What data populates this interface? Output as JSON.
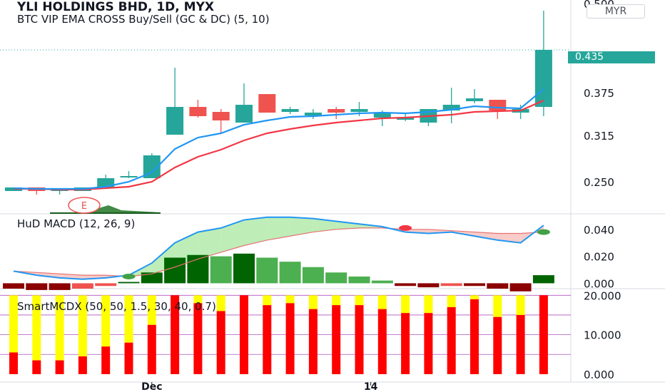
{
  "header": {
    "title": "YLI HOLDINGS BHD, 1D, MYX",
    "indicator": "BTC VIP EMA CROSS Buy/Sell (GC & DC) (5, 10)",
    "currency": "MYR",
    "last_price": "0.435"
  },
  "colors": {
    "up": "#26a69a",
    "down": "#ef5350",
    "ema_fast": "#2196f3",
    "ema_slow": "#f23645",
    "macd_fill": "#b7ebb0",
    "signal_fill": "#f7c6c2",
    "smart_red": "#ff0000",
    "smart_yellow": "#ffff00",
    "hline": "#9c27b0"
  },
  "chart_data": [
    {
      "type": "candlestick",
      "title": "YLI HOLDINGS BHD, 1D, MYX",
      "x_tick_labels": [
        "Dec",
        "14"
      ],
      "ylim": [
        0.205,
        0.505
      ],
      "y_tick_labels": [
        "0.500",
        "0.375",
        "0.315",
        "0.250"
      ],
      "y_ticks": [
        0.5,
        0.375,
        0.315,
        0.25
      ],
      "candles": [
        {
          "o": 0.237,
          "h": 0.242,
          "l": 0.237,
          "c": 0.242
        },
        {
          "o": 0.242,
          "h": 0.242,
          "l": 0.232,
          "c": 0.237
        },
        {
          "o": 0.237,
          "h": 0.24,
          "l": 0.232,
          "c": 0.239
        },
        {
          "o": 0.237,
          "h": 0.242,
          "l": 0.237,
          "c": 0.242
        },
        {
          "o": 0.242,
          "h": 0.26,
          "l": 0.24,
          "c": 0.255
        },
        {
          "o": 0.257,
          "h": 0.265,
          "l": 0.255,
          "c": 0.257
        },
        {
          "o": 0.255,
          "h": 0.29,
          "l": 0.255,
          "c": 0.287
        },
        {
          "o": 0.316,
          "h": 0.41,
          "l": 0.316,
          "c": 0.355
        },
        {
          "o": 0.355,
          "h": 0.365,
          "l": 0.34,
          "c": 0.342
        },
        {
          "o": 0.348,
          "h": 0.352,
          "l": 0.318,
          "c": 0.336
        },
        {
          "o": 0.333,
          "h": 0.388,
          "l": 0.333,
          "c": 0.358
        },
        {
          "o": 0.373,
          "h": 0.373,
          "l": 0.347,
          "c": 0.347
        },
        {
          "o": 0.348,
          "h": 0.355,
          "l": 0.345,
          "c": 0.352
        },
        {
          "o": 0.343,
          "h": 0.352,
          "l": 0.338,
          "c": 0.347
        },
        {
          "o": 0.352,
          "h": 0.355,
          "l": 0.338,
          "c": 0.347
        },
        {
          "o": 0.348,
          "h": 0.362,
          "l": 0.342,
          "c": 0.352
        },
        {
          "o": 0.34,
          "h": 0.35,
          "l": 0.328,
          "c": 0.347
        },
        {
          "o": 0.337,
          "h": 0.345,
          "l": 0.335,
          "c": 0.34
        },
        {
          "o": 0.333,
          "h": 0.352,
          "l": 0.328,
          "c": 0.352
        },
        {
          "o": 0.35,
          "h": 0.382,
          "l": 0.332,
          "c": 0.358
        },
        {
          "o": 0.363,
          "h": 0.38,
          "l": 0.36,
          "c": 0.367
        },
        {
          "o": 0.365,
          "h": 0.365,
          "l": 0.338,
          "c": 0.35
        },
        {
          "o": 0.347,
          "h": 0.358,
          "l": 0.338,
          "c": 0.352
        },
        {
          "o": 0.355,
          "h": 0.49,
          "l": 0.342,
          "c": 0.435
        }
      ],
      "series": [
        {
          "values": [
            0.241,
            0.24,
            0.24,
            0.24,
            0.243,
            0.25,
            0.263,
            0.296,
            0.312,
            0.318,
            0.33,
            0.336,
            0.341,
            0.342,
            0.344,
            0.346,
            0.347,
            0.346,
            0.348,
            0.351,
            0.356,
            0.354,
            0.353,
            0.38
          ]
        },
        {
          "values": [
            0.24,
            0.24,
            0.239,
            0.239,
            0.241,
            0.243,
            0.25,
            0.27,
            0.285,
            0.295,
            0.308,
            0.318,
            0.324,
            0.329,
            0.333,
            0.336,
            0.339,
            0.34,
            0.342,
            0.344,
            0.348,
            0.349,
            0.35,
            0.364
          ]
        }
      ],
      "annotations": [
        {
          "text": "E"
        }
      ]
    },
    {
      "type": "bar",
      "title": "HuD MACD (12, 26, 9)",
      "ylim": [
        -0.004,
        0.051
      ],
      "y_tick_labels": [
        "0.040",
        "0.020",
        "0.000"
      ],
      "y_ticks": [
        0.04,
        0.02,
        0.0
      ],
      "macd": [
        0.009,
        0.006,
        0.004,
        0.003,
        0.004,
        0.006,
        0.015,
        0.03,
        0.038,
        0.041,
        0.047,
        0.049,
        0.049,
        0.048,
        0.046,
        0.044,
        0.042,
        0.038,
        0.037,
        0.038,
        0.035,
        0.032,
        0.03,
        0.043
      ],
      "signal": [
        0.009,
        0.008,
        0.007,
        0.006,
        0.006,
        0.005,
        0.007,
        0.012,
        0.018,
        0.023,
        0.028,
        0.032,
        0.035,
        0.038,
        0.04,
        0.041,
        0.041,
        0.04,
        0.04,
        0.039,
        0.038,
        0.037,
        0.037,
        0.038
      ],
      "histogram": [
        -0.004,
        -0.005,
        -0.005,
        -0.004,
        -0.002,
        0.001,
        0.008,
        0.019,
        0.021,
        0.02,
        0.022,
        0.019,
        0.016,
        0.012,
        0.008,
        0.005,
        0.002,
        -0.002,
        -0.003,
        -0.002,
        -0.002,
        -0.004,
        -0.006,
        0.006
      ],
      "markers": [
        {
          "index": 5,
          "value": 0.005,
          "color": "#43a047"
        },
        {
          "index": 17,
          "value": 0.041,
          "color": "#f23645"
        },
        {
          "index": 23,
          "value": 0.038,
          "color": "#43a047"
        }
      ]
    },
    {
      "type": "bar",
      "title": "SmartMCDX (50, 50, 1.5, 30, 40, 0.7)",
      "ylim": [
        -2,
        21.5
      ],
      "y_tick_labels": [
        "20.000",
        "10.000",
        "0.000"
      ],
      "y_ticks": [
        20,
        10,
        0
      ],
      "hlines": [
        20,
        15,
        10,
        5
      ],
      "red": [
        5.5,
        3.5,
        3.5,
        4.5,
        7,
        8,
        12.5,
        20,
        18,
        16,
        20,
        17.5,
        18,
        16.5,
        17.5,
        17.5,
        16.5,
        15.5,
        15.5,
        17,
        19,
        14.5,
        15,
        20
      ],
      "yellow_top": [
        20,
        20,
        20,
        20,
        20,
        20,
        20,
        20,
        20,
        20,
        20,
        20,
        20,
        20,
        20,
        20,
        20,
        20,
        20,
        20,
        20,
        20,
        20,
        20
      ]
    }
  ]
}
